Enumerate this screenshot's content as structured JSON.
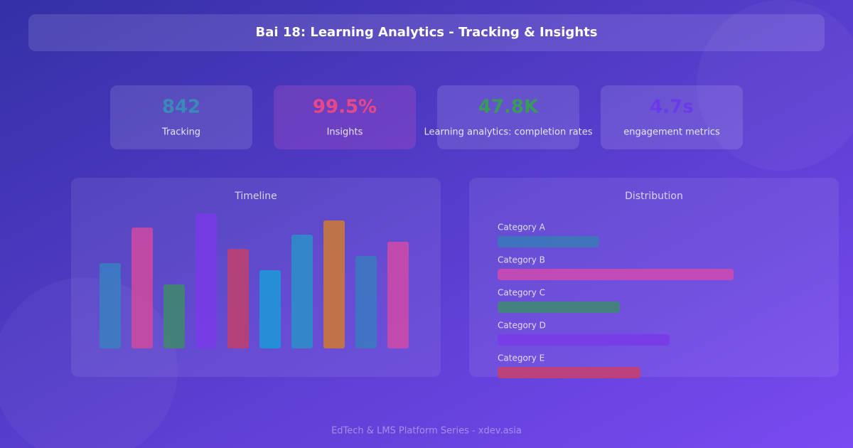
{
  "header": {
    "title": "Bai 18: Learning Analytics - Tracking & Insights"
  },
  "stats": [
    {
      "value": "842",
      "label": "Tracking",
      "color": "#3a8ab8"
    },
    {
      "value": "99.5%",
      "label": "Insights",
      "color": "#e8488a"
    },
    {
      "value": "47.8K",
      "label": "Learning analytics: completion rates",
      "color": "#3a9a5a"
    },
    {
      "value": "4.7s",
      "label": "engagement metrics",
      "color": "#6a3ae8"
    }
  ],
  "chart_data": [
    {
      "type": "bar",
      "title": "Timeline",
      "ylim": [
        0,
        200
      ],
      "values": [
        120,
        170,
        90,
        190,
        140,
        110,
        160,
        180,
        130,
        150
      ],
      "colors": [
        "#3a7fc0",
        "#d04aa0",
        "#3d8a6a",
        "#7a3ae8",
        "#c0406a",
        "#1a9ad8",
        "#2a90c8",
        "#d07a30",
        "#3a7ac0",
        "#d04aa8"
      ]
    },
    {
      "type": "hbar",
      "title": "Distribution",
      "xlim": [
        0,
        440
      ],
      "categories": [
        "Category A",
        "Category B",
        "Category C",
        "Category D",
        "Category E"
      ],
      "values": [
        143,
        332,
        172,
        242,
        201
      ],
      "colors": [
        "#3a7ab8",
        "#d04ab0",
        "#3d8a70",
        "#7a3ae8",
        "#c8406a"
      ]
    }
  ],
  "footer": "EdTech & LMS Platform Series - xdev.asia"
}
